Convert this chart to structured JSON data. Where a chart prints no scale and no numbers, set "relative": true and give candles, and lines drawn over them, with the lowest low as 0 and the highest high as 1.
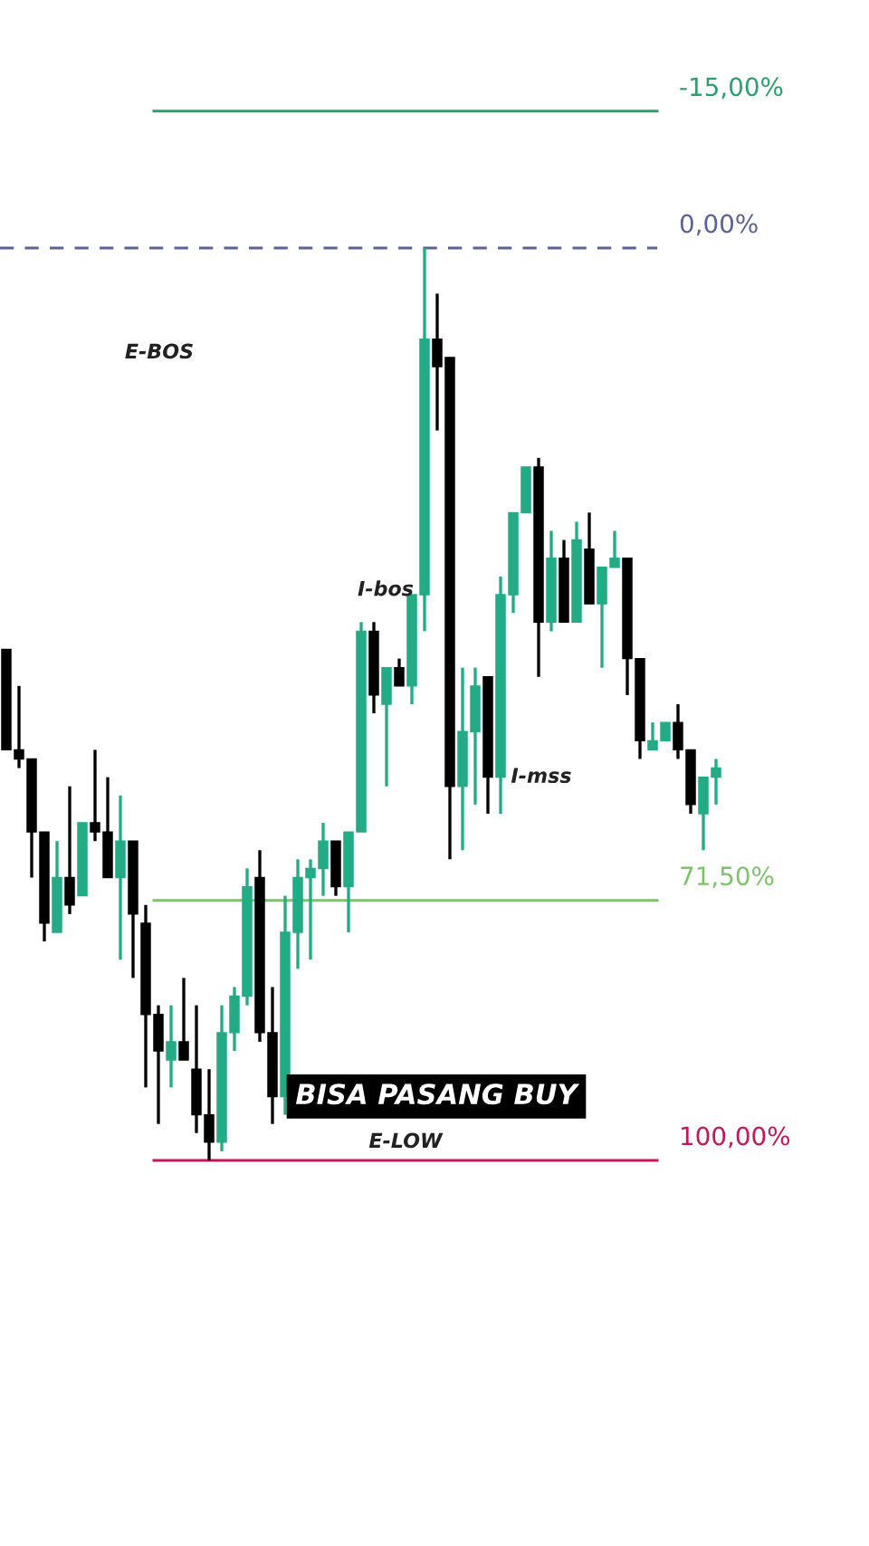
{
  "chart_data": {
    "type": "candlestick",
    "relative": true,
    "categories": [
      null,
      null,
      null,
      null,
      null,
      null,
      null,
      null,
      null,
      null,
      null,
      null,
      null,
      null,
      null,
      null,
      null,
      null,
      null,
      null,
      null,
      null,
      null,
      null,
      null,
      null,
      null,
      null,
      null,
      null,
      null,
      null,
      null,
      null,
      null,
      null,
      null,
      null,
      null,
      null,
      null,
      null,
      null,
      null,
      null,
      null,
      null,
      null,
      null,
      null,
      null,
      null,
      null,
      null,
      null,
      null,
      null
    ],
    "ohlc": [
      [
        0.56,
        0.56,
        0.45,
        0.45
      ],
      [
        0.45,
        0.52,
        0.43,
        0.44
      ],
      [
        0.44,
        0.44,
        0.31,
        0.36
      ],
      [
        0.36,
        0.36,
        0.24,
        0.26
      ],
      [
        0.25,
        0.35,
        0.25,
        0.31
      ],
      [
        0.31,
        0.41,
        0.27,
        0.28
      ],
      [
        0.29,
        0.37,
        0.29,
        0.37
      ],
      [
        0.37,
        0.45,
        0.35,
        0.36
      ],
      [
        0.36,
        0.42,
        0.31,
        0.31
      ],
      [
        0.31,
        0.4,
        0.22,
        0.35
      ],
      [
        0.35,
        0.35,
        0.2,
        0.27
      ],
      [
        0.26,
        0.28,
        0.08,
        0.16
      ],
      [
        0.16,
        0.17,
        0.04,
        0.12
      ],
      [
        0.11,
        0.17,
        0.08,
        0.13
      ],
      [
        0.13,
        0.2,
        0.11,
        0.11
      ],
      [
        0.1,
        0.17,
        0.03,
        0.05
      ],
      [
        0.05,
        0.1,
        0,
        0.02
      ],
      [
        0.02,
        0.17,
        0.01,
        0.14
      ],
      [
        0.14,
        0.19,
        0.12,
        0.18
      ],
      [
        0.18,
        0.32,
        0.17,
        0.3
      ],
      [
        0.31,
        0.34,
        0.13,
        0.14
      ],
      [
        0.14,
        0.19,
        0.04,
        0.07
      ],
      [
        0.07,
        0.29,
        0.05,
        0.25
      ],
      [
        0.25,
        0.33,
        0.21,
        0.31
      ],
      [
        0.31,
        0.33,
        0.22,
        0.32
      ],
      [
        0.32,
        0.37,
        0.29,
        0.35
      ],
      [
        0.35,
        0.35,
        0.29,
        0.3
      ],
      [
        0.3,
        0.36,
        0.25,
        0.36
      ],
      [
        0.36,
        0.59,
        0.36,
        0.58
      ],
      [
        0.58,
        0.59,
        0.49,
        0.51
      ],
      [
        0.5,
        0.54,
        0.41,
        0.54
      ],
      [
        0.54,
        0.55,
        0.52,
        0.52
      ],
      [
        0.52,
        0.62,
        0.5,
        0.62
      ],
      [
        0.62,
        1,
        0.58,
        0.9
      ],
      [
        0.9,
        0.95,
        0.8,
        0.87
      ],
      [
        0.88,
        0.88,
        0.33,
        0.41
      ],
      [
        0.41,
        0.54,
        0.34,
        0.47
      ],
      [
        0.47,
        0.54,
        0.39,
        0.52
      ],
      [
        0.53,
        0.53,
        0.38,
        0.42
      ],
      [
        0.42,
        0.64,
        0.38,
        0.62
      ],
      [
        0.62,
        0.71,
        0.6,
        0.71
      ],
      [
        0.71,
        0.76,
        0.71,
        0.76
      ],
      [
        0.76,
        0.77,
        0.53,
        0.59
      ],
      [
        0.59,
        0.69,
        0.58,
        0.66
      ],
      [
        0.66,
        0.68,
        0.59,
        0.59
      ],
      [
        0.59,
        0.7,
        0.59,
        0.68
      ],
      [
        0.67,
        0.71,
        0.61,
        0.61
      ],
      [
        0.61,
        0.65,
        0.54,
        0.65
      ],
      [
        0.65,
        0.69,
        0.65,
        0.66
      ],
      [
        0.66,
        0.66,
        0.51,
        0.55
      ],
      [
        0.55,
        0.55,
        0.44,
        0.46
      ],
      [
        0.45,
        0.48,
        0.45,
        0.46
      ],
      [
        0.46,
        0.48,
        0.46,
        0.48
      ],
      [
        0.48,
        0.5,
        0.44,
        0.45
      ],
      [
        0.45,
        0.45,
        0.38,
        0.39
      ],
      [
        0.38,
        0.42,
        0.34,
        0.42
      ],
      [
        0.42,
        0.44,
        0.39,
        0.43
      ]
    ],
    "colors": [
      "#000000",
      "#000000",
      "#000000",
      "#000000",
      "#22ab84",
      "#000000",
      "#22ab84",
      "#000000",
      "#000000",
      "#22ab84",
      "#000000",
      "#000000",
      "#000000",
      "#22ab84",
      "#000000",
      "#000000",
      "#000000",
      "#22ab84",
      "#22ab84",
      "#22ab84",
      "#000000",
      "#000000",
      "#22ab84",
      "#22ab84",
      "#22ab84",
      "#22ab84",
      "#000000",
      "#22ab84",
      "#22ab84",
      "#000000",
      "#22ab84",
      "#000000",
      "#22ab84",
      "#22ab84",
      "#000000",
      "#000000",
      "#22ab84",
      "#22ab84",
      "#000000",
      "#22ab84",
      "#22ab84",
      "#22ab84",
      "#000000",
      "#22ab84",
      "#000000",
      "#22ab84",
      "#000000",
      "#22ab84",
      "#22ab84",
      "#000000",
      "#000000",
      "#22ab84",
      "#22ab84",
      "#000000",
      "#000000",
      "#22ab84",
      "#22ab84"
    ],
    "ref_lines": [
      {
        "axis": "y",
        "value": 1.15,
        "color": "#2e9e6e",
        "line_style": "solid"
      },
      {
        "axis": "y",
        "value": 1,
        "color": "#5b6396",
        "line_style": "dashed"
      },
      {
        "axis": "y",
        "value": 0.285,
        "color": "#7cc46a",
        "line_style": "solid"
      },
      {
        "axis": "y",
        "value": 0,
        "color": "#c2185b",
        "line_style": "solid"
      }
    ],
    "annotations": [
      "-15,00%",
      "0,00%",
      "71,50%",
      "100,00%",
      "E-BOS",
      "I-bos",
      "I-mss",
      "BISA PASANG BUY",
      "E-LOW"
    ],
    "legend": false
  }
}
